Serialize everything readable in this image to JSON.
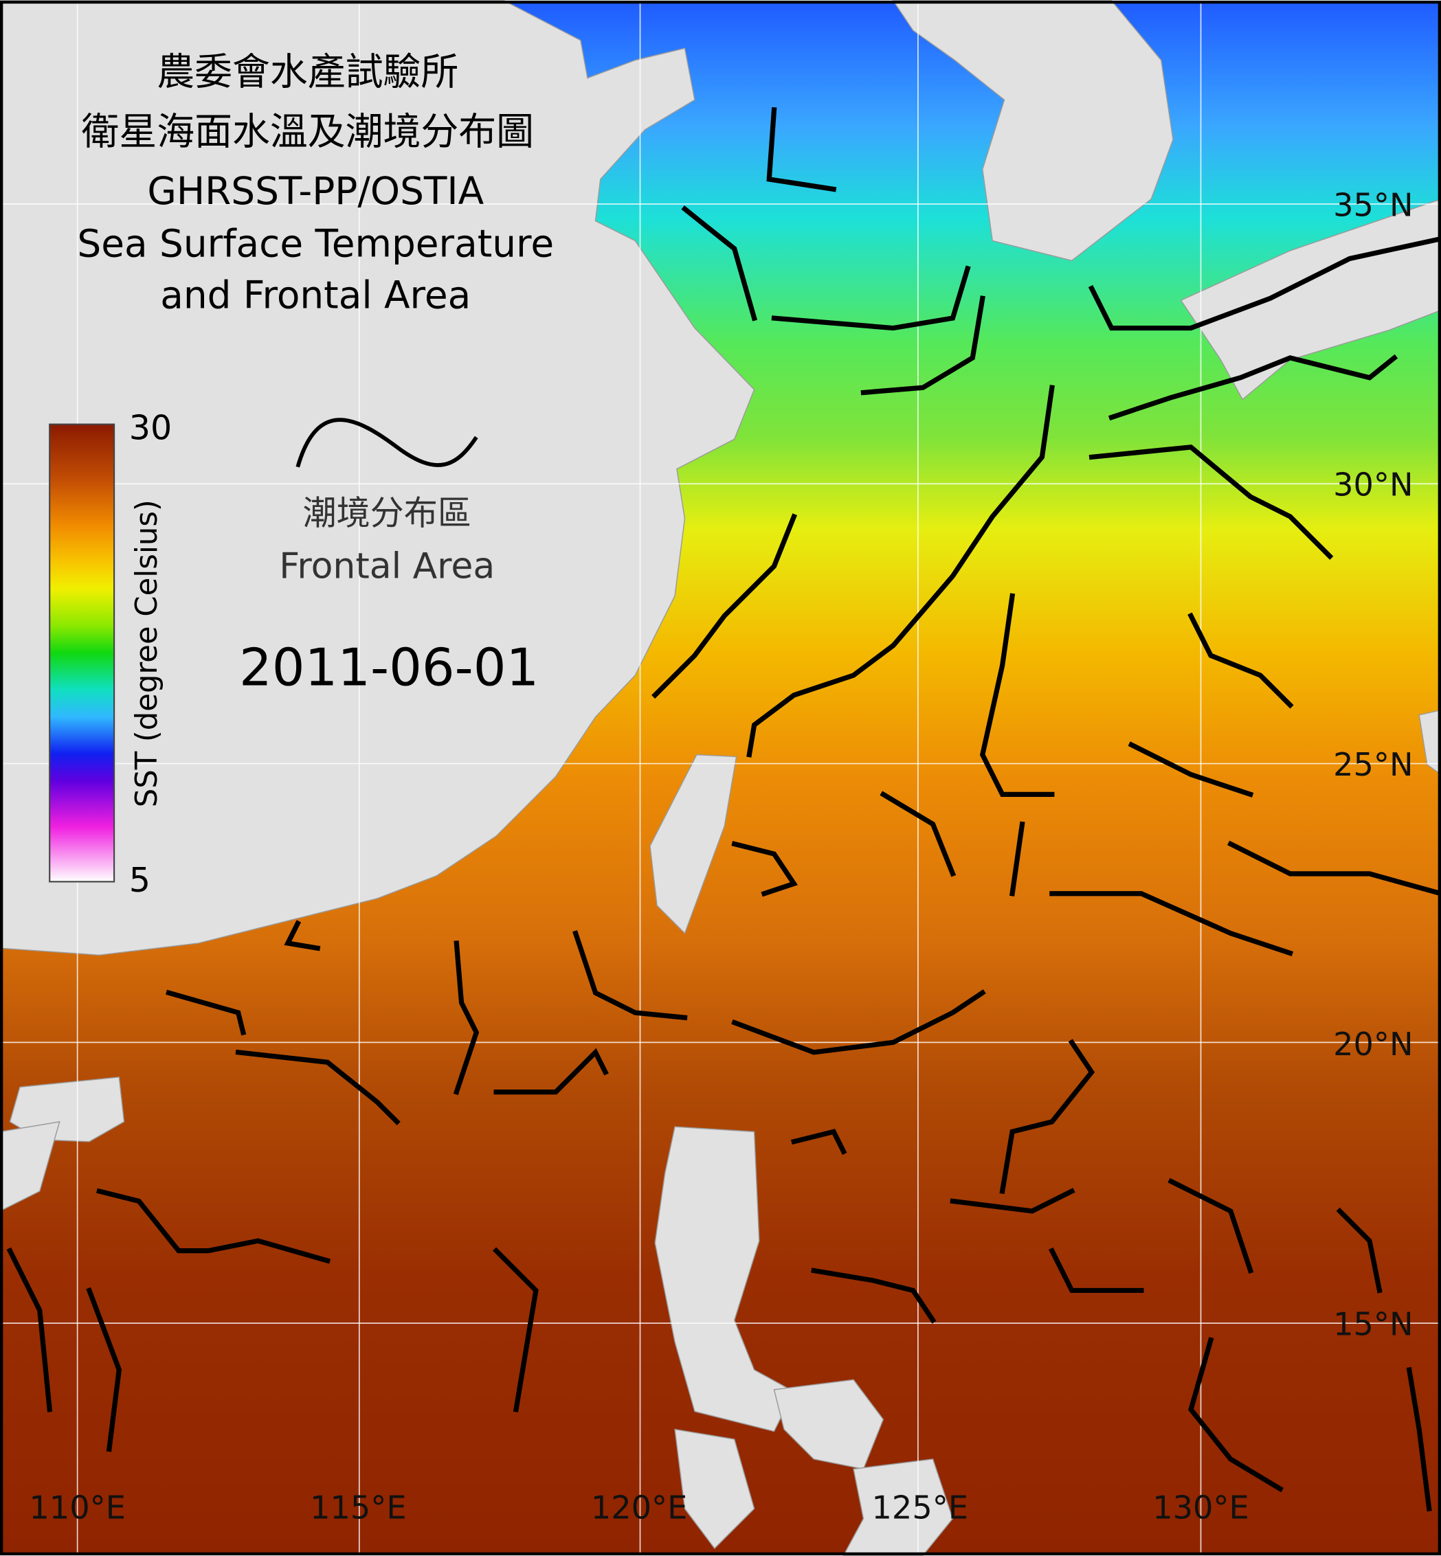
{
  "title": {
    "zh": "農委會水產試驗所",
    "zh_sub": "衛星海面水溫及潮境分布圖",
    "product": "GHRSST-PP/OSTIA",
    "en_line1": "Sea Surface Temperature",
    "en_line2": "and Frontal Area"
  },
  "colorbar": {
    "label": "SST (degree Celsius)",
    "max": 30,
    "min": 5
  },
  "legend": {
    "zh": "潮境分布區",
    "en": "Frontal Area"
  },
  "date": "2011-06-01",
  "latitude_labels": [
    "35°N",
    "30°N",
    "25°N",
    "20°N",
    "15°N"
  ],
  "longitude_labels": [
    "110°E",
    "115°E",
    "120°E",
    "125°E",
    "130°E"
  ]
}
